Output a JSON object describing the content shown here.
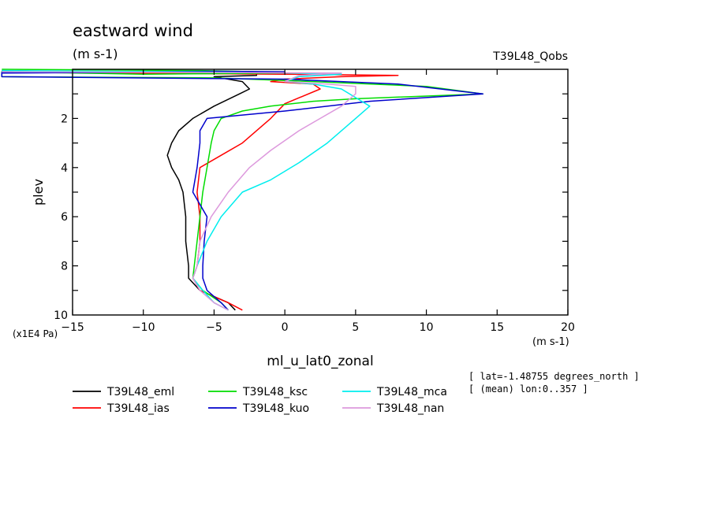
{
  "title": "eastward wind",
  "units": "(m s-1)",
  "experiment": "T39L48_Qobs",
  "ylabel": "plev",
  "yunit": "(x1E4 Pa)",
  "xunit": "(m s-1)",
  "xlabel": "ml_u_lat0_zonal",
  "info_line1": "[ lat=-1.48755 degrees_north ]",
  "info_line2": "[ (mean) lon:0..357 ]",
  "chart_data": {
    "type": "line",
    "title": "eastward wind",
    "xlabel": "ml_u_lat0_zonal",
    "ylabel": "plev",
    "xlim": [
      -15,
      20
    ],
    "ylim": [
      10,
      0
    ],
    "x_ticks": [
      -15,
      -10,
      -5,
      0,
      5,
      10,
      15,
      20
    ],
    "y_ticks": [
      2,
      4,
      6,
      8,
      10
    ],
    "grid": false,
    "legend_position": "bottom",
    "series": [
      {
        "name": "T39L48_eml",
        "color": "#000000",
        "points": [
          [
            -20,
            0.05
          ],
          [
            -15,
            0.1
          ],
          [
            -2,
            0.15
          ],
          [
            -2,
            0.25
          ],
          [
            -5,
            0.3
          ],
          [
            -3,
            0.5
          ],
          [
            -2.5,
            0.8
          ],
          [
            -3.2,
            1.0
          ],
          [
            -5,
            1.5
          ],
          [
            -6.5,
            2.0
          ],
          [
            -7.5,
            2.5
          ],
          [
            -8,
            3.0
          ],
          [
            -8.3,
            3.5
          ],
          [
            -8,
            4.0
          ],
          [
            -7.5,
            4.5
          ],
          [
            -7.2,
            5.0
          ],
          [
            -7,
            6.0
          ],
          [
            -7,
            7.0
          ],
          [
            -6.8,
            8.0
          ],
          [
            -6.8,
            8.5
          ],
          [
            -6,
            9.0
          ],
          [
            -4,
            9.5
          ],
          [
            -3.5,
            9.8
          ]
        ]
      },
      {
        "name": "T39L48_ias",
        "color": "#ff0000",
        "points": [
          [
            -20,
            0.1
          ],
          [
            -12,
            0.15
          ],
          [
            0,
            0.2
          ],
          [
            8,
            0.25
          ],
          [
            4,
            0.3
          ],
          [
            0,
            0.4
          ],
          [
            -1,
            0.5
          ],
          [
            2,
            0.6
          ],
          [
            2.5,
            0.8
          ],
          [
            0,
            1.4
          ],
          [
            -1,
            2.0
          ],
          [
            -3,
            3.0
          ],
          [
            -4.5,
            3.5
          ],
          [
            -6,
            4.0
          ],
          [
            -6.2,
            5.0
          ],
          [
            -6,
            6.0
          ],
          [
            -6,
            7.0
          ],
          [
            -6.2,
            8.0
          ],
          [
            -6.5,
            8.5
          ],
          [
            -6,
            9.0
          ],
          [
            -4,
            9.5
          ],
          [
            -3,
            9.8
          ]
        ]
      },
      {
        "name": "T39L48_ksc",
        "color": "#00dd00",
        "points": [
          [
            -20,
            0.0
          ],
          [
            -6,
            0.05
          ],
          [
            -2,
            0.1
          ],
          [
            0,
            0.15
          ],
          [
            -10,
            0.2
          ],
          [
            -20,
            0.1
          ],
          [
            -20,
            0.3
          ],
          [
            -5,
            0.35
          ],
          [
            2,
            0.5
          ],
          [
            10,
            0.7
          ],
          [
            14,
            1.0
          ],
          [
            5,
            1.2
          ],
          [
            2,
            1.3
          ],
          [
            -1,
            1.5
          ],
          [
            -3,
            1.7
          ],
          [
            -4.5,
            2.0
          ],
          [
            -5,
            2.5
          ],
          [
            -5.2,
            3.0
          ],
          [
            -5.5,
            4.0
          ],
          [
            -5.8,
            5.0
          ],
          [
            -6,
            6.0
          ],
          [
            -6.2,
            7.0
          ],
          [
            -6.4,
            8.0
          ],
          [
            -6.5,
            8.5
          ],
          [
            -5.8,
            9.0
          ],
          [
            -4.5,
            9.5
          ],
          [
            -4,
            9.8
          ]
        ]
      },
      {
        "name": "T39L48_kuo",
        "color": "#0000cc",
        "points": [
          [
            -20,
            0.15
          ],
          [
            -10,
            0.12
          ],
          [
            0,
            0.1
          ],
          [
            -5,
            0.08
          ],
          [
            -20,
            0.12
          ],
          [
            -20,
            0.3
          ],
          [
            0,
            0.4
          ],
          [
            8,
            0.6
          ],
          [
            14,
            1.0
          ],
          [
            6,
            1.3
          ],
          [
            0,
            1.7
          ],
          [
            -5.5,
            2.0
          ],
          [
            -6,
            2.5
          ],
          [
            -6,
            3.0
          ],
          [
            -6.2,
            4.0
          ],
          [
            -6.5,
            5.0
          ],
          [
            -6,
            5.5
          ],
          [
            -5.5,
            6.0
          ],
          [
            -5.7,
            7.0
          ],
          [
            -5.8,
            8.0
          ],
          [
            -5.8,
            8.5
          ],
          [
            -5.5,
            9.0
          ],
          [
            -4.5,
            9.5
          ],
          [
            -4,
            9.8
          ]
        ]
      },
      {
        "name": "T39L48_mca",
        "color": "#00eeee",
        "points": [
          [
            -20,
            0.05
          ],
          [
            -8,
            0.1
          ],
          [
            0,
            0.15
          ],
          [
            4,
            0.2
          ],
          [
            1,
            0.3
          ],
          [
            0,
            0.5
          ],
          [
            2,
            0.6
          ],
          [
            4,
            0.8
          ],
          [
            6,
            1.5
          ],
          [
            5,
            2.0
          ],
          [
            3,
            3.0
          ],
          [
            1,
            3.8
          ],
          [
            -1,
            4.5
          ],
          [
            -3,
            5.0
          ],
          [
            -4.5,
            6.0
          ],
          [
            -5.5,
            7.0
          ],
          [
            -6.2,
            8.0
          ],
          [
            -6.5,
            8.5
          ],
          [
            -5.8,
            9.0
          ],
          [
            -5,
            9.5
          ],
          [
            -4,
            9.8
          ]
        ]
      },
      {
        "name": "T39L48_nan",
        "color": "#dd99dd",
        "points": [
          [
            -20,
            0.1
          ],
          [
            -10,
            0.12
          ],
          [
            4,
            0.15
          ],
          [
            1,
            0.25
          ],
          [
            0,
            0.5
          ],
          [
            3,
            0.6
          ],
          [
            5,
            0.7
          ],
          [
            5,
            1.0
          ],
          [
            4,
            1.5
          ],
          [
            2.5,
            2.0
          ],
          [
            1,
            2.5
          ],
          [
            -1,
            3.3
          ],
          [
            -2.5,
            4.0
          ],
          [
            -4,
            5.0
          ],
          [
            -5.2,
            6.0
          ],
          [
            -6,
            7.0
          ],
          [
            -6.2,
            8.0
          ],
          [
            -6.5,
            8.5
          ],
          [
            -6,
            9.0
          ],
          [
            -5,
            9.5
          ],
          [
            -4,
            9.8
          ]
        ]
      }
    ]
  }
}
